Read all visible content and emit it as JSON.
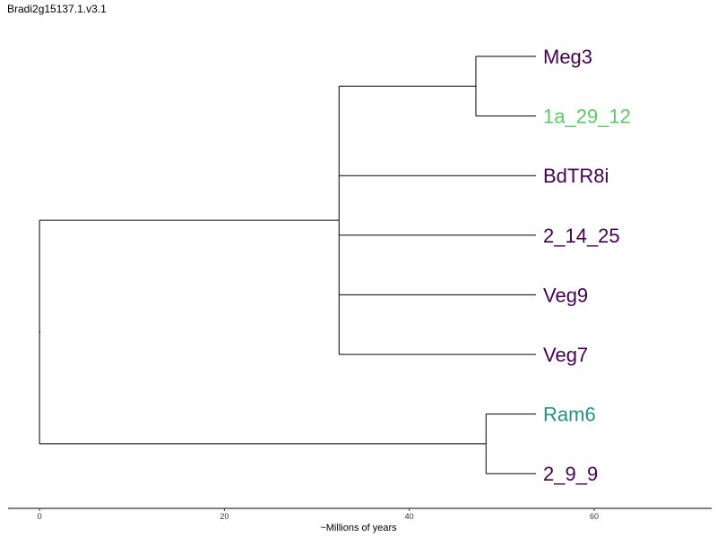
{
  "chart_data": {
    "type": "dendrogram",
    "title": "Bradi2g15137.1.v3.1",
    "xlabel": "~Millions of years",
    "xlim": [
      -3.4,
      72.7
    ],
    "ticks": [
      0,
      20,
      40,
      60
    ],
    "tick_labels": [
      "0",
      "20",
      "40",
      "60"
    ],
    "tips": [
      {
        "label": "Meg3",
        "color": "#440154"
      },
      {
        "label": "1a_29_12",
        "color": "#5ec962"
      },
      {
        "label": "BdTR8i",
        "color": "#440154"
      },
      {
        "label": "2_14_25",
        "color": "#440154"
      },
      {
        "label": "Veg9",
        "color": "#440154"
      },
      {
        "label": "Veg7",
        "color": "#440154"
      },
      {
        "label": "Ram6",
        "color": "#21918c"
      },
      {
        "label": "2_9_9",
        "color": "#440154"
      }
    ],
    "tip_age": 53.7,
    "nodes": [
      {
        "name": "root",
        "age": 0.0,
        "children": [
          "n1",
          "n3"
        ]
      },
      {
        "name": "n1",
        "age": 32.4,
        "children": [
          "n2",
          "BdTR8i",
          "2_14_25",
          "Veg9",
          "Veg7"
        ]
      },
      {
        "name": "n2",
        "age": 47.2,
        "children": [
          "Meg3",
          "1a_29_12"
        ]
      },
      {
        "name": "n3",
        "age": 48.3,
        "children": [
          "Ram6",
          "2_9_9"
        ]
      }
    ]
  }
}
